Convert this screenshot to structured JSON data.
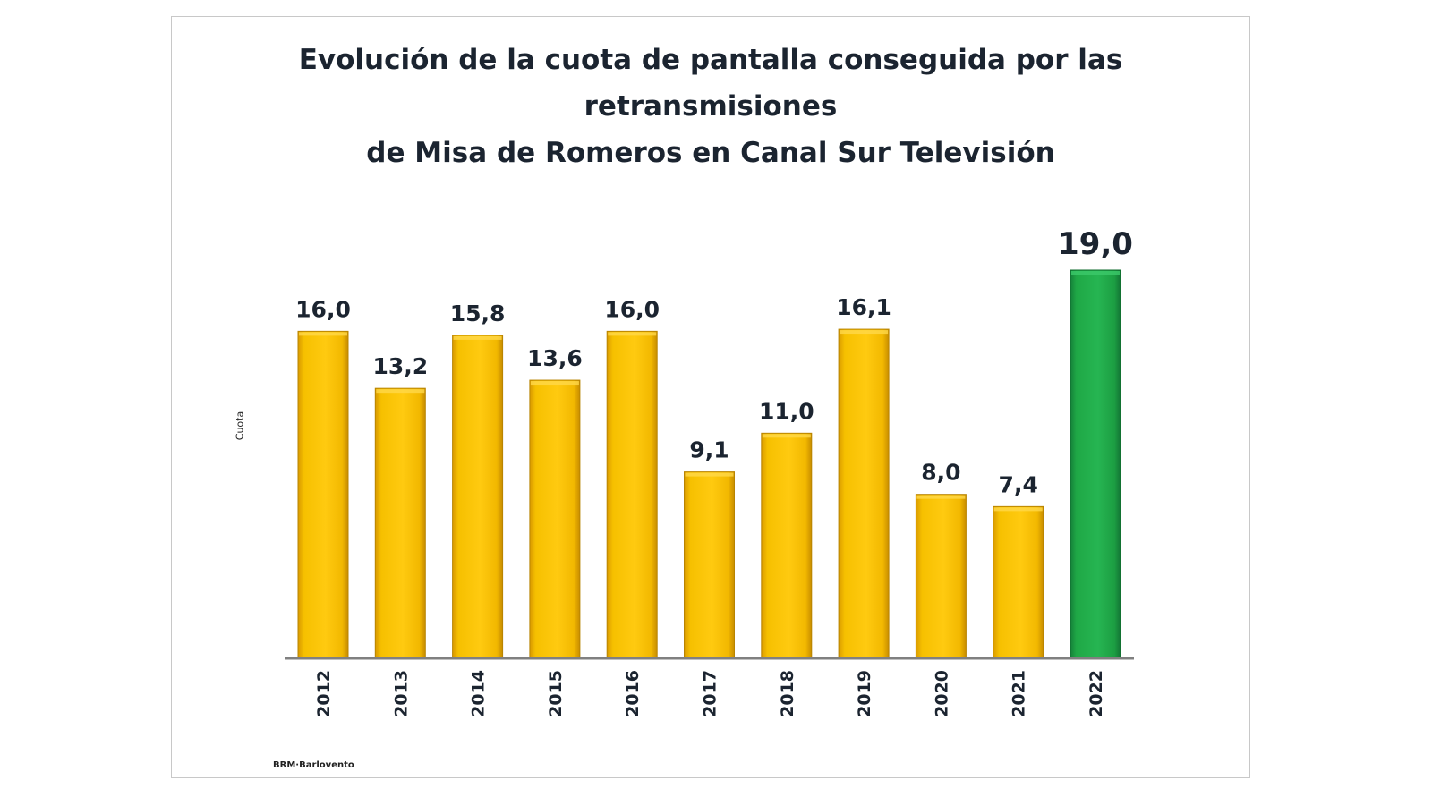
{
  "chart_data": {
    "type": "bar",
    "title_lines": [
      "Evolución de la cuota de pantalla conseguida por las retransmisiones",
      "de Misa de Romeros en Canal Sur Televisión"
    ],
    "categories": [
      "2012",
      "2013",
      "2014",
      "2015",
      "2016",
      "2017",
      "2018",
      "2019",
      "2020",
      "2021",
      "2022"
    ],
    "values": [
      16.0,
      13.2,
      15.8,
      13.6,
      16.0,
      9.1,
      11.0,
      16.1,
      8.0,
      7.4,
      19.0
    ],
    "value_labels": [
      "16,0",
      "13,2",
      "15,8",
      "13,6",
      "16,0",
      "9,1",
      "11,0",
      "16,1",
      "8,0",
      "7,4",
      "19,0"
    ],
    "ylabel": "Cuota",
    "xlabel": "",
    "ylim": [
      0,
      19
    ],
    "grid": false,
    "legend": "none",
    "colors": {
      "default_bar": "#f6c000",
      "highlight_bar": "#1fa846",
      "axis": "#808080",
      "text": "#1b2430"
    },
    "highlight_category": "2022",
    "source": "BRM·Barlovento"
  }
}
